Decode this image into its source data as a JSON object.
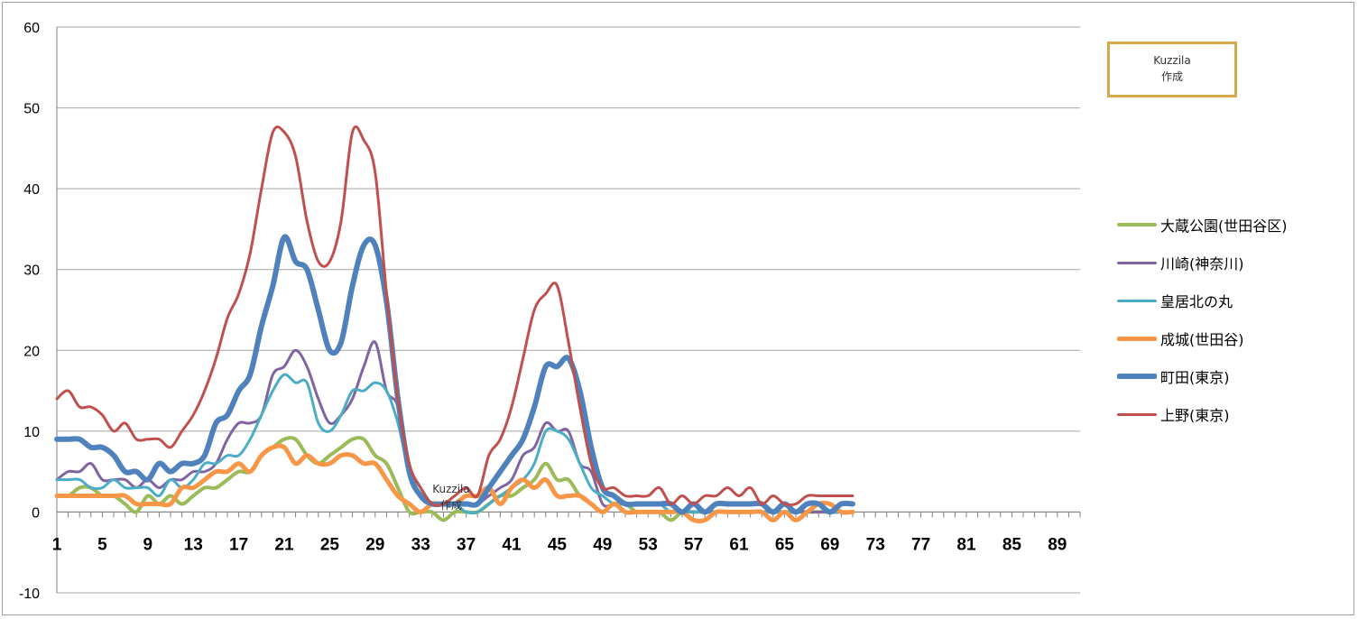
{
  "chart_data": {
    "type": "line",
    "title": "",
    "xlabel": "",
    "ylabel": "",
    "ylim": [
      -10,
      60
    ],
    "yticks": [
      -10,
      0,
      10,
      20,
      30,
      40,
      50,
      60
    ],
    "xlim": [
      1,
      91
    ],
    "xticks": [
      1,
      5,
      9,
      13,
      17,
      21,
      25,
      29,
      33,
      37,
      41,
      45,
      49,
      53,
      57,
      61,
      65,
      69,
      73,
      77,
      81,
      85,
      89
    ],
    "grid": "horizontal",
    "legend_position": "right",
    "x": [
      1,
      2,
      3,
      4,
      5,
      6,
      7,
      8,
      9,
      10,
      11,
      12,
      13,
      14,
      15,
      16,
      17,
      18,
      19,
      20,
      21,
      22,
      23,
      24,
      25,
      26,
      27,
      28,
      29,
      30,
      31,
      32,
      33,
      34,
      35,
      36,
      37,
      38,
      39,
      40,
      41,
      42,
      43,
      44,
      45,
      46,
      47,
      48,
      49,
      50,
      51,
      52,
      53,
      54,
      55,
      56,
      57,
      58,
      59,
      60,
      61,
      62,
      63,
      64,
      65,
      66,
      67,
      68,
      69,
      70,
      71
    ],
    "series": [
      {
        "name": "大蔵公園(世田谷区)",
        "color": "#9bbb59",
        "width": 4,
        "values": [
          2,
          2,
          3,
          3,
          2,
          2,
          1,
          0,
          2,
          1,
          2,
          1,
          2,
          3,
          3,
          4,
          5,
          5,
          7,
          8,
          9,
          9,
          7,
          6,
          7,
          8,
          9,
          9,
          7,
          6,
          3,
          0,
          0,
          0,
          -1,
          0,
          0,
          0,
          1,
          2,
          2,
          3,
          4,
          6,
          4,
          4,
          2,
          1,
          0,
          1,
          1,
          0,
          0,
          0,
          -1,
          0,
          0,
          0,
          0,
          0,
          0,
          0,
          0,
          0,
          0,
          0,
          0,
          0,
          0,
          0,
          0
        ]
      },
      {
        "name": "川崎(神奈川)",
        "color": "#8064a2",
        "width": 3,
        "values": [
          4,
          5,
          5,
          6,
          4,
          4,
          4,
          3,
          4,
          3,
          4,
          4,
          5,
          5,
          6,
          9,
          11,
          11,
          12,
          17,
          18,
          20,
          18,
          14,
          11,
          12,
          14,
          18,
          21,
          15,
          13,
          5,
          2,
          1,
          1,
          1,
          1,
          1,
          2,
          3,
          4,
          7,
          8,
          11,
          10,
          10,
          6,
          5,
          1,
          1,
          1,
          1,
          1,
          1,
          0,
          0,
          0,
          0,
          0,
          0,
          0,
          0,
          0,
          0,
          0,
          0,
          0,
          0,
          0,
          0,
          0
        ]
      },
      {
        "name": "皇居北の丸",
        "color": "#4bacc6",
        "width": 3,
        "values": [
          4,
          4,
          4,
          3,
          3,
          4,
          3,
          3,
          3,
          2,
          4,
          3,
          4,
          6,
          6,
          7,
          7,
          9,
          12,
          15,
          17,
          16,
          16,
          11,
          10,
          12,
          15,
          15,
          16,
          15,
          11,
          5,
          3,
          1,
          1,
          1,
          0,
          0,
          1,
          2,
          3,
          4,
          6,
          10,
          10,
          9,
          6,
          3,
          2,
          1,
          1,
          1,
          1,
          1,
          0,
          0,
          0,
          0,
          0,
          0,
          0,
          0,
          0,
          0,
          0,
          0,
          1,
          1,
          0,
          0,
          0
        ]
      },
      {
        "name": "成城(世田谷)",
        "color": "#f79646",
        "width": 5,
        "values": [
          2,
          2,
          2,
          2,
          2,
          2,
          2,
          1,
          1,
          1,
          1,
          3,
          3,
          4,
          5,
          5,
          6,
          5,
          7,
          8,
          8,
          6,
          7,
          6,
          6,
          7,
          7,
          6,
          6,
          4,
          2,
          1,
          0,
          1,
          1,
          1,
          2,
          2,
          3,
          1,
          3,
          4,
          3,
          4,
          2,
          2,
          2,
          1,
          0,
          1,
          0,
          0,
          0,
          0,
          0,
          0,
          -1,
          -1,
          0,
          0,
          0,
          0,
          0,
          -1,
          0,
          -1,
          0,
          1,
          1,
          0,
          0
        ]
      },
      {
        "name": "町田(東京)",
        "color": "#4f81bd",
        "width": 6,
        "values": [
          9,
          9,
          9,
          8,
          8,
          7,
          5,
          5,
          4,
          6,
          5,
          6,
          6,
          7,
          11,
          12,
          15,
          17,
          23,
          28,
          34,
          31,
          30,
          25,
          20,
          21,
          28,
          33,
          33,
          26,
          14,
          5,
          2,
          1,
          1,
          1,
          1,
          1,
          3,
          5,
          7,
          9,
          13,
          18,
          18,
          19,
          15,
          8,
          3,
          2,
          1,
          1,
          1,
          1,
          1,
          0,
          1,
          0,
          1,
          1,
          1,
          1,
          1,
          0,
          1,
          0,
          1,
          1,
          0,
          1,
          1
        ]
      },
      {
        "name": "上野(東京)",
        "color": "#c0504d",
        "width": 3,
        "values": [
          14,
          15,
          13,
          13,
          12,
          10,
          11,
          9,
          9,
          9,
          8,
          10,
          12,
          15,
          19,
          24,
          27,
          32,
          40,
          47,
          47,
          44,
          36,
          31,
          31,
          36,
          47,
          46,
          42,
          27,
          14,
          6,
          3,
          1,
          1,
          2,
          3,
          2,
          7,
          9,
          13,
          19,
          25,
          27,
          28,
          21,
          13,
          6,
          3,
          3,
          2,
          2,
          2,
          3,
          1,
          2,
          1,
          2,
          2,
          3,
          2,
          3,
          1,
          2,
          1,
          1,
          2,
          2,
          2,
          2,
          2
        ]
      }
    ]
  },
  "watermark": {
    "line1": "Kuzzila",
    "line2": "作成"
  }
}
